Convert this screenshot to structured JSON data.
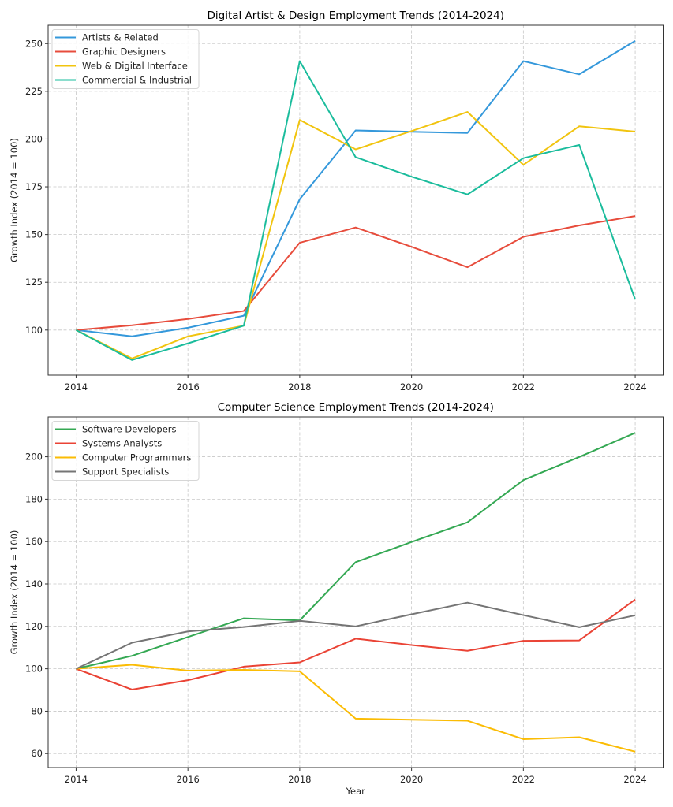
{
  "chart_data": [
    {
      "type": "line",
      "title": "Digital Artist & Design Employment Trends (2014-2024)",
      "xlabel": "",
      "ylabel": "Growth Index (2014 = 100)",
      "x": [
        2014,
        2015,
        2016,
        2017,
        2018,
        2019,
        2020,
        2021,
        2022,
        2023,
        2024
      ],
      "xlim": [
        2013.5,
        2024.5
      ],
      "ylim": [
        76.4,
        259.6
      ],
      "xticks": [
        2014,
        2016,
        2018,
        2020,
        2022,
        2024
      ],
      "yticks": [
        100,
        125,
        150,
        175,
        200,
        225,
        250
      ],
      "grid": true,
      "legend_position": "top-left",
      "series": [
        {
          "name": "Artists & Related",
          "color": "#3498db",
          "values": [
            100,
            96.7,
            101.2,
            107.5,
            168.5,
            204.5,
            203.8,
            203.2,
            240.8,
            233.9,
            251.4
          ]
        },
        {
          "name": "Graphic Designers",
          "color": "#e74c3c",
          "values": [
            100,
            102.5,
            105.8,
            110.0,
            145.7,
            153.7,
            143.6,
            132.9,
            148.8,
            154.8,
            159.7
          ]
        },
        {
          "name": "Web & Digital Interface",
          "color": "#f1c40f",
          "values": [
            100,
            85.1,
            96.7,
            102.3,
            210.0,
            194.6,
            204.2,
            214.2,
            186.5,
            206.7,
            203.9
          ]
        },
        {
          "name": "Commercial & Industrial",
          "color": "#1abc9c",
          "values": [
            100,
            84.3,
            93.0,
            102.3,
            240.8,
            190.5,
            180.3,
            171.0,
            190.0,
            196.9,
            116.0
          ]
        }
      ]
    },
    {
      "type": "line",
      "title": "Computer Science Employment Trends (2014-2024)",
      "xlabel": "Year",
      "ylabel": "Growth Index (2014 = 100)",
      "x": [
        2014,
        2015,
        2016,
        2017,
        2018,
        2019,
        2020,
        2021,
        2022,
        2023,
        2024
      ],
      "xlim": [
        2013.5,
        2024.5
      ],
      "ylim": [
        53.4,
        218.8
      ],
      "xticks": [
        2014,
        2016,
        2018,
        2020,
        2022,
        2024
      ],
      "yticks": [
        60,
        80,
        100,
        120,
        140,
        160,
        180,
        200
      ],
      "grid": true,
      "legend_position": "top-left",
      "series": [
        {
          "name": "Software Developers",
          "color": "#34a853",
          "values": [
            100,
            106.1,
            115.0,
            123.8,
            122.8,
            150.3,
            159.8,
            169.1,
            189.0,
            199.9,
            211.3
          ]
        },
        {
          "name": "Systems Analysts",
          "color": "#ea4335",
          "values": [
            100,
            90.2,
            94.6,
            101.0,
            103.0,
            114.2,
            111.2,
            108.5,
            113.2,
            113.4,
            132.7
          ]
        },
        {
          "name": "Computer Programmers",
          "color": "#fbbc04",
          "values": [
            100,
            101.9,
            99.1,
            99.5,
            98.8,
            76.5,
            76.0,
            75.5,
            66.8,
            67.7,
            60.9
          ]
        },
        {
          "name": "Support Specialists",
          "color": "#757575",
          "values": [
            100,
            112.3,
            117.6,
            119.7,
            122.6,
            120.0,
            125.7,
            131.2,
            125.3,
            119.6,
            125.2
          ]
        }
      ]
    }
  ]
}
